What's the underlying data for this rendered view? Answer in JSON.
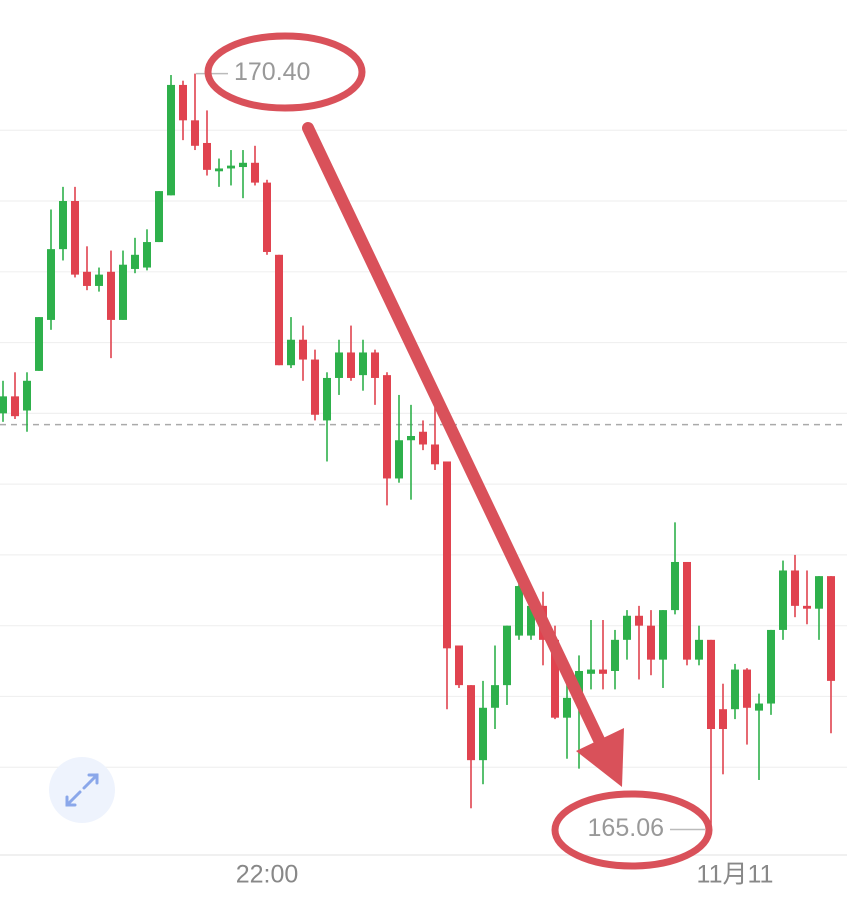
{
  "chart_data": {
    "type": "candlestick",
    "categories": [
      null,
      null,
      null,
      null,
      null,
      null,
      null,
      null,
      null,
      null,
      null,
      null,
      null,
      null,
      null,
      null,
      null,
      null,
      null,
      null,
      null,
      null,
      "22:00",
      null,
      null,
      null,
      null,
      null,
      null,
      null,
      null,
      null,
      null,
      null,
      null,
      null,
      null,
      null,
      null,
      null,
      null,
      null,
      null,
      null,
      null,
      null,
      null,
      null,
      null,
      null,
      null,
      null,
      null,
      null,
      null,
      null,
      null,
      null,
      null,
      null,
      null,
      "11月11",
      null,
      null,
      null,
      null,
      null,
      null,
      null,
      null
    ],
    "open": [
      168.0,
      168.12,
      168.02,
      168.3,
      168.66,
      169.16,
      169.5,
      169.0,
      168.9,
      169.0,
      168.66,
      169.02,
      169.03,
      169.21,
      169.54,
      170.32,
      170.07,
      169.91,
      169.71,
      169.73,
      169.74,
      169.77,
      169.63,
      169.12,
      168.34,
      168.52,
      168.38,
      167.95,
      168.25,
      168.43,
      168.27,
      168.43,
      168.27,
      167.54,
      167.81,
      167.87,
      167.78,
      167.66,
      166.36,
      166.08,
      165.55,
      165.92,
      166.08,
      166.43,
      166.43,
      166.64,
      166.4,
      165.85,
      165.99,
      166.16,
      166.19,
      166.18,
      166.4,
      166.57,
      166.5,
      166.26,
      166.61,
      166.95,
      166.26,
      166.4,
      165.91,
      165.91,
      166.19,
      165.9,
      165.95,
      166.47,
      166.89,
      166.64,
      166.62,
      166.85
    ],
    "high": [
      168.23,
      168.29,
      168.29,
      168.68,
      169.44,
      169.6,
      169.6,
      169.18,
      169.03,
      169.15,
      169.15,
      169.24,
      169.3,
      169.57,
      170.39,
      170.35,
      170.4,
      170.14,
      169.8,
      169.86,
      169.86,
      169.89,
      169.65,
      169.12,
      168.68,
      168.62,
      168.45,
      168.29,
      168.52,
      168.62,
      168.52,
      168.45,
      168.29,
      168.13,
      168.06,
      167.95,
      168.09,
      167.66,
      166.36,
      166.08,
      166.11,
      166.36,
      166.5,
      166.82,
      166.78,
      166.74,
      166.5,
      166.11,
      166.29,
      166.54,
      166.54,
      166.47,
      166.61,
      166.64,
      166.61,
      166.61,
      167.23,
      166.95,
      166.5,
      166.4,
      166.09,
      166.23,
      166.2,
      166.02,
      166.47,
      166.96,
      167.0,
      166.89,
      166.85,
      166.85
    ],
    "low": [
      167.94,
      167.96,
      167.87,
      168.3,
      168.59,
      169.08,
      168.96,
      168.87,
      168.86,
      168.39,
      168.66,
      168.99,
      169.01,
      169.21,
      169.54,
      169.93,
      169.86,
      169.68,
      169.6,
      169.61,
      169.52,
      169.61,
      169.12,
      168.34,
      168.32,
      168.23,
      167.95,
      167.66,
      168.13,
      168.23,
      168.16,
      168.06,
      167.35,
      167.51,
      167.39,
      167.74,
      167.6,
      165.91,
      166.06,
      165.21,
      165.38,
      165.77,
      165.94,
      166.4,
      166.4,
      166.22,
      165.84,
      165.56,
      165.49,
      166.05,
      166.05,
      166.05,
      166.26,
      166.12,
      166.15,
      166.06,
      166.58,
      166.22,
      166.22,
      165.06,
      165.45,
      165.84,
      165.66,
      165.41,
      165.87,
      166.4,
      166.56,
      166.51,
      166.4,
      165.74
    ],
    "close": [
      168.12,
      167.98,
      168.23,
      168.68,
      169.16,
      169.5,
      168.98,
      168.9,
      168.98,
      168.66,
      169.05,
      169.12,
      169.21,
      169.57,
      170.32,
      170.07,
      169.89,
      169.72,
      169.73,
      169.75,
      169.77,
      169.63,
      169.14,
      168.34,
      168.52,
      168.38,
      167.99,
      168.25,
      168.43,
      168.25,
      168.43,
      168.25,
      167.54,
      167.81,
      167.84,
      167.78,
      167.64,
      166.34,
      166.08,
      165.55,
      165.92,
      166.08,
      166.5,
      166.78,
      166.64,
      166.4,
      165.85,
      165.99,
      166.18,
      166.19,
      166.16,
      166.4,
      166.57,
      166.5,
      166.26,
      166.61,
      166.95,
      166.26,
      166.4,
      165.77,
      165.77,
      166.19,
      165.92,
      165.95,
      166.47,
      166.89,
      166.64,
      166.62,
      166.85,
      166.11
    ],
    "up_color": "#2eb04b",
    "down_color": "#e0434f",
    "ylim": [
      164.88,
      170.92
    ],
    "gridlines": [
      165.5,
      166.0,
      166.5,
      167.0,
      167.5,
      168.0,
      168.5,
      169.0,
      169.5,
      170.0
    ],
    "reference_line": 167.92,
    "high_label": {
      "value": 170.4,
      "label": "170.40"
    },
    "low_label": {
      "value": 165.06,
      "label": "165.06"
    }
  }
}
